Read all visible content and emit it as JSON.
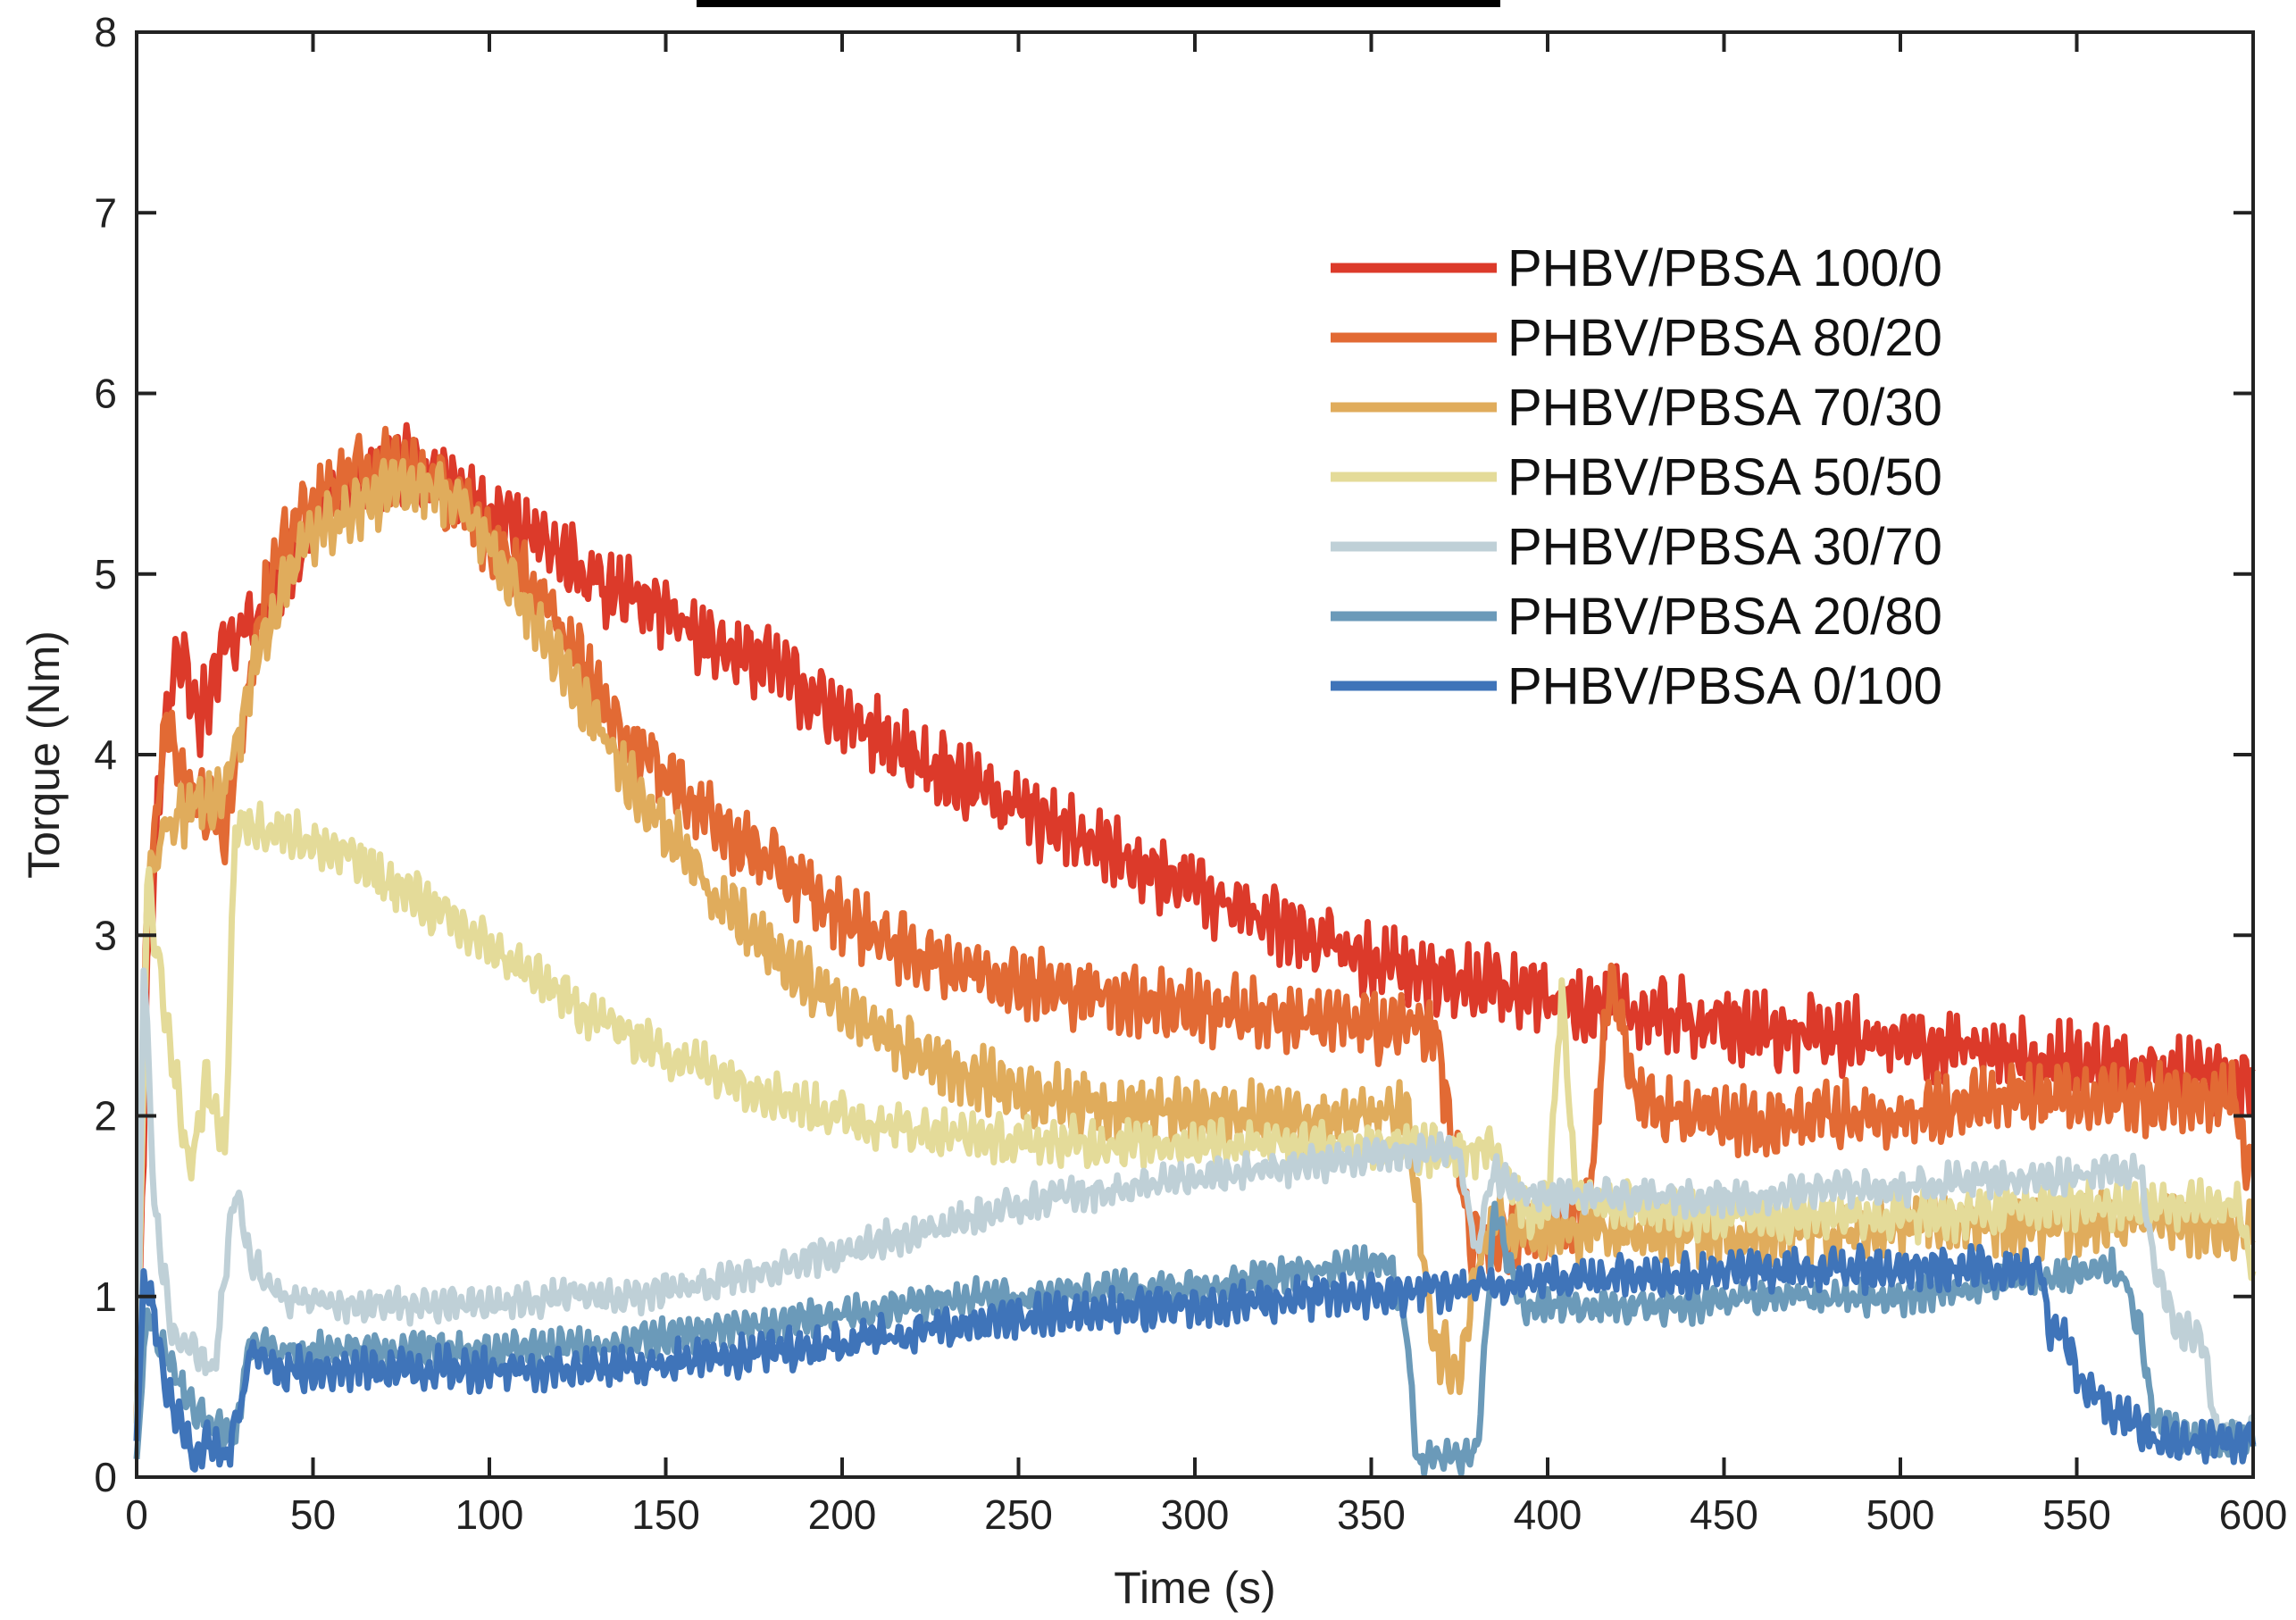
{
  "chart_data": {
    "type": "line",
    "title": "",
    "xlabel": "Time (s)",
    "ylabel": "Torque (Nm)",
    "xlim": [
      0,
      600
    ],
    "ylim": [
      0,
      8
    ],
    "xticks": [
      0,
      50,
      100,
      150,
      200,
      250,
      300,
      350,
      400,
      450,
      500,
      550,
      600
    ],
    "yticks": [
      0,
      1,
      2,
      3,
      4,
      5,
      6,
      7,
      8
    ],
    "grid": false,
    "legend_position": "top-right",
    "series": [
      {
        "name": "PHBV/PBSA 100/0",
        "color": "#dc3a2a",
        "noise": 0.22,
        "x": [
          0,
          3,
          8,
          12,
          18,
          25,
          35,
          45,
          55,
          65,
          75,
          85,
          95,
          105,
          120,
          135,
          150,
          165,
          180,
          200,
          220,
          240,
          260,
          280,
          300,
          325,
          350,
          375,
          400,
          425,
          450,
          475,
          500,
          525,
          550,
          575,
          600
        ],
        "y": [
          0.3,
          2.8,
          4.2,
          4.6,
          4.2,
          4.6,
          4.8,
          5.1,
          5.4,
          5.5,
          5.6,
          5.5,
          5.4,
          5.3,
          5.1,
          4.9,
          4.8,
          4.6,
          4.5,
          4.2,
          4.0,
          3.8,
          3.6,
          3.45,
          3.25,
          3.05,
          2.85,
          2.75,
          2.65,
          2.58,
          2.5,
          2.45,
          2.4,
          2.35,
          2.3,
          2.25,
          2.2
        ]
      },
      {
        "name": "PHBV/PBSA 80/20",
        "color": "#e26a34",
        "noise": 0.2,
        "x": [
          0,
          3,
          8,
          15,
          25,
          35,
          45,
          55,
          65,
          75,
          85,
          95,
          105,
          120,
          135,
          150,
          165,
          180,
          200,
          220,
          240,
          260,
          280,
          300,
          325,
          350,
          368,
          372,
          378,
          385,
          395,
          405,
          412,
          418,
          425,
          440,
          460,
          480,
          500,
          520,
          540,
          560,
          580,
          595,
          598,
          600
        ],
        "y": [
          0.3,
          3.2,
          4.2,
          3.8,
          3.6,
          4.8,
          5.3,
          5.5,
          5.6,
          5.6,
          5.5,
          5.3,
          5.1,
          4.7,
          4.2,
          3.9,
          3.6,
          3.4,
          3.1,
          2.9,
          2.8,
          2.7,
          2.65,
          2.6,
          2.55,
          2.5,
          2.5,
          2.0,
          1.3,
          1.3,
          1.35,
          1.4,
          1.6,
          2.8,
          2.1,
          2.0,
          1.95,
          2.0,
          2.0,
          2.05,
          2.1,
          2.1,
          2.1,
          2.1,
          1.7,
          1.7
        ]
      },
      {
        "name": "PHBV/PBSA 70/30",
        "color": "#e0ac5c",
        "noise": 0.18,
        "x": [
          0,
          3,
          8,
          15,
          25,
          35,
          45,
          55,
          65,
          75,
          85,
          95,
          105,
          120,
          135,
          150,
          165,
          180,
          200,
          220,
          240,
          260,
          280,
          300,
          325,
          350,
          360,
          364,
          368,
          372,
          376,
          380,
          385,
          395,
          405,
          420,
          440,
          460,
          480,
          500,
          520,
          540,
          560,
          580,
          600
        ],
        "y": [
          0.3,
          3.3,
          3.6,
          3.7,
          3.8,
          4.6,
          5.1,
          5.3,
          5.4,
          5.5,
          5.5,
          5.3,
          5.0,
          4.5,
          4.0,
          3.6,
          3.2,
          2.9,
          2.6,
          2.35,
          2.2,
          2.1,
          2.05,
          2.0,
          2.0,
          2.0,
          2.0,
          1.3,
          0.7,
          0.65,
          0.6,
          1.2,
          1.4,
          1.35,
          1.35,
          1.35,
          1.35,
          1.35,
          1.35,
          1.4,
          1.4,
          1.4,
          1.4,
          1.4,
          1.35
        ]
      },
      {
        "name": "PHBV/PBSA 50/50",
        "color": "#e4db99",
        "noise": 0.14,
        "x": [
          0,
          3,
          8,
          15,
          20,
          25,
          28,
          32,
          40,
          50,
          60,
          70,
          80,
          95,
          110,
          130,
          150,
          170,
          190,
          210,
          230,
          250,
          270,
          290,
          310,
          330,
          350,
          370,
          385,
          395,
          400,
          404,
          408,
          420,
          440,
          460,
          480,
          500,
          520,
          540,
          560,
          580,
          590,
          596,
          600
        ],
        "y": [
          0.3,
          3.3,
          2.6,
          1.7,
          2.2,
          1.8,
          3.6,
          3.6,
          3.6,
          3.5,
          3.45,
          3.3,
          3.2,
          3.0,
          2.8,
          2.55,
          2.35,
          2.2,
          2.05,
          1.95,
          1.9,
          1.85,
          1.85,
          1.85,
          1.85,
          1.85,
          1.85,
          1.8,
          1.8,
          1.45,
          1.5,
          2.7,
          1.55,
          1.5,
          1.45,
          1.45,
          1.45,
          1.45,
          1.45,
          1.5,
          1.5,
          1.5,
          1.5,
          1.5,
          1.1
        ]
      },
      {
        "name": "PHBV/PBSA 30/70",
        "color": "#bfd0d7",
        "noise": 0.1,
        "x": [
          0,
          2,
          5,
          10,
          15,
          22,
          28,
          32,
          40,
          60,
          80,
          100,
          120,
          140,
          160,
          180,
          200,
          220,
          240,
          260,
          280,
          300,
          320,
          340,
          360,
          375,
          380,
          384,
          390,
          400,
          420,
          440,
          460,
          480,
          500,
          520,
          540,
          560,
          568,
          572,
          578,
          585,
          590,
          600
        ],
        "y": [
          0.2,
          2.9,
          1.5,
          0.8,
          0.7,
          0.6,
          1.6,
          1.2,
          1.0,
          0.95,
          0.95,
          0.95,
          1.0,
          1.0,
          1.05,
          1.15,
          1.25,
          1.35,
          1.45,
          1.55,
          1.6,
          1.65,
          1.7,
          1.75,
          1.8,
          1.8,
          1.2,
          1.7,
          1.6,
          1.55,
          1.55,
          1.55,
          1.55,
          1.6,
          1.6,
          1.65,
          1.65,
          1.7,
          1.7,
          1.2,
          0.8,
          0.8,
          0.25,
          0.25
        ]
      },
      {
        "name": "PHBV/PBSA 20/80",
        "color": "#6b9ab9",
        "noise": 0.1,
        "x": [
          0,
          3,
          8,
          15,
          22,
          28,
          32,
          40,
          60,
          80,
          100,
          120,
          140,
          160,
          180,
          200,
          220,
          240,
          260,
          280,
          300,
          320,
          340,
          355,
          360,
          363,
          366,
          370,
          376,
          380,
          385,
          392,
          400,
          420,
          440,
          460,
          480,
          500,
          520,
          540,
          560,
          564,
          568,
          572,
          578,
          586,
          592,
          600
        ],
        "y": [
          0.1,
          0.9,
          0.7,
          0.4,
          0.3,
          0.2,
          0.75,
          0.7,
          0.7,
          0.7,
          0.7,
          0.72,
          0.75,
          0.8,
          0.85,
          0.9,
          0.95,
          1.0,
          1.0,
          1.05,
          1.05,
          1.1,
          1.15,
          1.2,
          0.8,
          0.1,
          0.1,
          0.1,
          0.1,
          0.15,
          1.5,
          0.95,
          0.95,
          0.95,
          0.95,
          1.0,
          1.0,
          1.0,
          1.05,
          1.1,
          1.15,
          1.1,
          0.8,
          0.3,
          0.25,
          0.2,
          0.2,
          0.2
        ]
      },
      {
        "name": "PHBV/PBSA 0/100",
        "color": "#3f74b9",
        "noise": 0.12,
        "x": [
          0,
          2,
          4,
          8,
          12,
          16,
          20,
          25,
          28,
          30,
          32,
          40,
          60,
          80,
          100,
          120,
          140,
          160,
          180,
          200,
          220,
          240,
          260,
          280,
          300,
          320,
          340,
          360,
          380,
          400,
          420,
          440,
          460,
          480,
          500,
          520,
          540,
          542,
          546,
          552,
          556,
          560,
          566,
          572,
          580,
          590,
          600
        ],
        "y": [
          0.2,
          1.1,
          1.0,
          0.5,
          0.3,
          0.1,
          0.2,
          0.1,
          0.3,
          0.4,
          0.7,
          0.6,
          0.6,
          0.6,
          0.6,
          0.6,
          0.62,
          0.65,
          0.7,
          0.75,
          0.8,
          0.85,
          0.9,
          0.92,
          0.95,
          0.98,
          1.0,
          1.02,
          1.05,
          1.1,
          1.12,
          1.12,
          1.15,
          1.15,
          1.15,
          1.15,
          1.15,
          0.8,
          0.8,
          0.5,
          0.45,
          0.35,
          0.3,
          0.2,
          0.2,
          0.2,
          0.2
        ]
      }
    ]
  }
}
